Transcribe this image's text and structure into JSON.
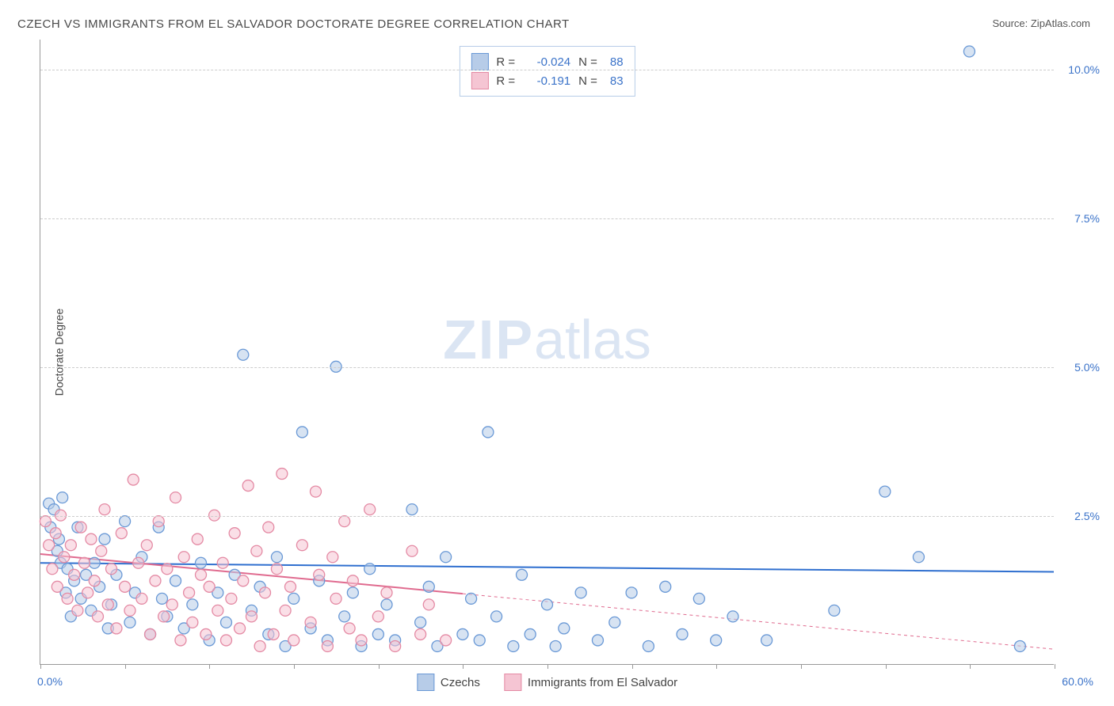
{
  "title": "CZECH VS IMMIGRANTS FROM EL SALVADOR DOCTORATE DEGREE CORRELATION CHART",
  "source": "Source: ZipAtlas.com",
  "watermark_zip": "ZIP",
  "watermark_atlas": "atlas",
  "y_axis_label": "Doctorate Degree",
  "chart": {
    "type": "scatter",
    "x_domain": [
      0,
      60
    ],
    "y_domain": [
      0,
      10.5
    ],
    "x_tick_positions": [
      0,
      5,
      10,
      15,
      20,
      25,
      30,
      35,
      40,
      45,
      50,
      55,
      60
    ],
    "x_start_label": "0.0%",
    "x_end_label": "60.0%",
    "y_gridlines": [
      2.5,
      5.0,
      7.5,
      10.0
    ],
    "y_tick_labels": [
      "2.5%",
      "5.0%",
      "7.5%",
      "10.0%"
    ],
    "background_color": "#ffffff",
    "grid_color": "#cccccc",
    "axis_color": "#999999",
    "label_color_blue": "#3b73c9",
    "marker_radius": 7,
    "marker_stroke_width": 1.3,
    "series": [
      {
        "name": "Czechs",
        "color_fill": "#b7cce8",
        "color_stroke": "#6a99d6",
        "line_color": "#2f6fcf",
        "line_width": 2,
        "line_dash": "none",
        "R": "-0.024",
        "N": "88",
        "regression": {
          "x1": 0,
          "y1": 1.7,
          "x2": 60,
          "y2": 1.55
        },
        "points": [
          [
            0.5,
            2.7
          ],
          [
            0.6,
            2.3
          ],
          [
            0.8,
            2.6
          ],
          [
            1.0,
            1.9
          ],
          [
            1.1,
            2.1
          ],
          [
            1.2,
            1.7
          ],
          [
            1.3,
            2.8
          ],
          [
            1.5,
            1.2
          ],
          [
            1.6,
            1.6
          ],
          [
            1.8,
            0.8
          ],
          [
            2.0,
            1.4
          ],
          [
            2.2,
            2.3
          ],
          [
            2.4,
            1.1
          ],
          [
            2.7,
            1.5
          ],
          [
            3.0,
            0.9
          ],
          [
            3.2,
            1.7
          ],
          [
            3.5,
            1.3
          ],
          [
            3.8,
            2.1
          ],
          [
            4.0,
            0.6
          ],
          [
            4.2,
            1.0
          ],
          [
            4.5,
            1.5
          ],
          [
            5.0,
            2.4
          ],
          [
            5.3,
            0.7
          ],
          [
            5.6,
            1.2
          ],
          [
            6.0,
            1.8
          ],
          [
            6.5,
            0.5
          ],
          [
            7.0,
            2.3
          ],
          [
            7.2,
            1.1
          ],
          [
            7.5,
            0.8
          ],
          [
            8.0,
            1.4
          ],
          [
            8.5,
            0.6
          ],
          [
            9.0,
            1.0
          ],
          [
            9.5,
            1.7
          ],
          [
            10.0,
            0.4
          ],
          [
            10.5,
            1.2
          ],
          [
            11.0,
            0.7
          ],
          [
            11.5,
            1.5
          ],
          [
            12.0,
            5.2
          ],
          [
            12.5,
            0.9
          ],
          [
            13.0,
            1.3
          ],
          [
            13.5,
            0.5
          ],
          [
            14.0,
            1.8
          ],
          [
            14.5,
            0.3
          ],
          [
            15.0,
            1.1
          ],
          [
            15.5,
            3.9
          ],
          [
            16.0,
            0.6
          ],
          [
            16.5,
            1.4
          ],
          [
            17.0,
            0.4
          ],
          [
            17.5,
            5.0
          ],
          [
            18.0,
            0.8
          ],
          [
            18.5,
            1.2
          ],
          [
            19.0,
            0.3
          ],
          [
            19.5,
            1.6
          ],
          [
            20.0,
            0.5
          ],
          [
            20.5,
            1.0
          ],
          [
            21.0,
            0.4
          ],
          [
            22.0,
            2.6
          ],
          [
            22.5,
            0.7
          ],
          [
            23.0,
            1.3
          ],
          [
            23.5,
            0.3
          ],
          [
            24.0,
            1.8
          ],
          [
            25.0,
            0.5
          ],
          [
            25.5,
            1.1
          ],
          [
            26.0,
            0.4
          ],
          [
            26.5,
            3.9
          ],
          [
            27.0,
            0.8
          ],
          [
            28.0,
            0.3
          ],
          [
            28.5,
            1.5
          ],
          [
            29.0,
            0.5
          ],
          [
            30.0,
            1.0
          ],
          [
            30.5,
            0.3
          ],
          [
            31.0,
            0.6
          ],
          [
            32.0,
            1.2
          ],
          [
            33.0,
            0.4
          ],
          [
            34.0,
            0.7
          ],
          [
            35.0,
            1.2
          ],
          [
            36.0,
            0.3
          ],
          [
            37.0,
            1.3
          ],
          [
            38.0,
            0.5
          ],
          [
            39.0,
            1.1
          ],
          [
            40.0,
            0.4
          ],
          [
            41.0,
            0.8
          ],
          [
            43.0,
            0.4
          ],
          [
            47.0,
            0.9
          ],
          [
            50.0,
            2.9
          ],
          [
            52.0,
            1.8
          ],
          [
            55.0,
            10.3
          ],
          [
            58.0,
            0.3
          ]
        ]
      },
      {
        "name": "Immigrants from El Salvador",
        "color_fill": "#f5c5d3",
        "color_stroke": "#e48aa4",
        "line_color": "#e06b8f",
        "line_width": 2,
        "line_dash": "4 4",
        "R": "-0.191",
        "N": "83",
        "regression": {
          "x1": 0,
          "y1": 1.85,
          "x2": 60,
          "y2": 0.25
        },
        "regression_solid_until_x": 25,
        "points": [
          [
            0.3,
            2.4
          ],
          [
            0.5,
            2.0
          ],
          [
            0.7,
            1.6
          ],
          [
            0.9,
            2.2
          ],
          [
            1.0,
            1.3
          ],
          [
            1.2,
            2.5
          ],
          [
            1.4,
            1.8
          ],
          [
            1.6,
            1.1
          ],
          [
            1.8,
            2.0
          ],
          [
            2.0,
            1.5
          ],
          [
            2.2,
            0.9
          ],
          [
            2.4,
            2.3
          ],
          [
            2.6,
            1.7
          ],
          [
            2.8,
            1.2
          ],
          [
            3.0,
            2.1
          ],
          [
            3.2,
            1.4
          ],
          [
            3.4,
            0.8
          ],
          [
            3.6,
            1.9
          ],
          [
            3.8,
            2.6
          ],
          [
            4.0,
            1.0
          ],
          [
            4.2,
            1.6
          ],
          [
            4.5,
            0.6
          ],
          [
            4.8,
            2.2
          ],
          [
            5.0,
            1.3
          ],
          [
            5.3,
            0.9
          ],
          [
            5.5,
            3.1
          ],
          [
            5.8,
            1.7
          ],
          [
            6.0,
            1.1
          ],
          [
            6.3,
            2.0
          ],
          [
            6.5,
            0.5
          ],
          [
            6.8,
            1.4
          ],
          [
            7.0,
            2.4
          ],
          [
            7.3,
            0.8
          ],
          [
            7.5,
            1.6
          ],
          [
            7.8,
            1.0
          ],
          [
            8.0,
            2.8
          ],
          [
            8.3,
            0.4
          ],
          [
            8.5,
            1.8
          ],
          [
            8.8,
            1.2
          ],
          [
            9.0,
            0.7
          ],
          [
            9.3,
            2.1
          ],
          [
            9.5,
            1.5
          ],
          [
            9.8,
            0.5
          ],
          [
            10.0,
            1.3
          ],
          [
            10.3,
            2.5
          ],
          [
            10.5,
            0.9
          ],
          [
            10.8,
            1.7
          ],
          [
            11.0,
            0.4
          ],
          [
            11.3,
            1.1
          ],
          [
            11.5,
            2.2
          ],
          [
            11.8,
            0.6
          ],
          [
            12.0,
            1.4
          ],
          [
            12.3,
            3.0
          ],
          [
            12.5,
            0.8
          ],
          [
            12.8,
            1.9
          ],
          [
            13.0,
            0.3
          ],
          [
            13.3,
            1.2
          ],
          [
            13.5,
            2.3
          ],
          [
            13.8,
            0.5
          ],
          [
            14.0,
            1.6
          ],
          [
            14.3,
            3.2
          ],
          [
            14.5,
            0.9
          ],
          [
            14.8,
            1.3
          ],
          [
            15.0,
            0.4
          ],
          [
            15.5,
            2.0
          ],
          [
            16.0,
            0.7
          ],
          [
            16.3,
            2.9
          ],
          [
            16.5,
            1.5
          ],
          [
            17.0,
            0.3
          ],
          [
            17.3,
            1.8
          ],
          [
            17.5,
            1.1
          ],
          [
            18.0,
            2.4
          ],
          [
            18.3,
            0.6
          ],
          [
            18.5,
            1.4
          ],
          [
            19.0,
            0.4
          ],
          [
            19.5,
            2.6
          ],
          [
            20.0,
            0.8
          ],
          [
            20.5,
            1.2
          ],
          [
            21.0,
            0.3
          ],
          [
            22.0,
            1.9
          ],
          [
            22.5,
            0.5
          ],
          [
            23.0,
            1.0
          ],
          [
            24.0,
            0.4
          ]
        ]
      }
    ]
  },
  "stats_labels": {
    "R": "R =",
    "N": "N ="
  },
  "legend": {
    "series1": "Czechs",
    "series2": "Immigrants from El Salvador"
  }
}
